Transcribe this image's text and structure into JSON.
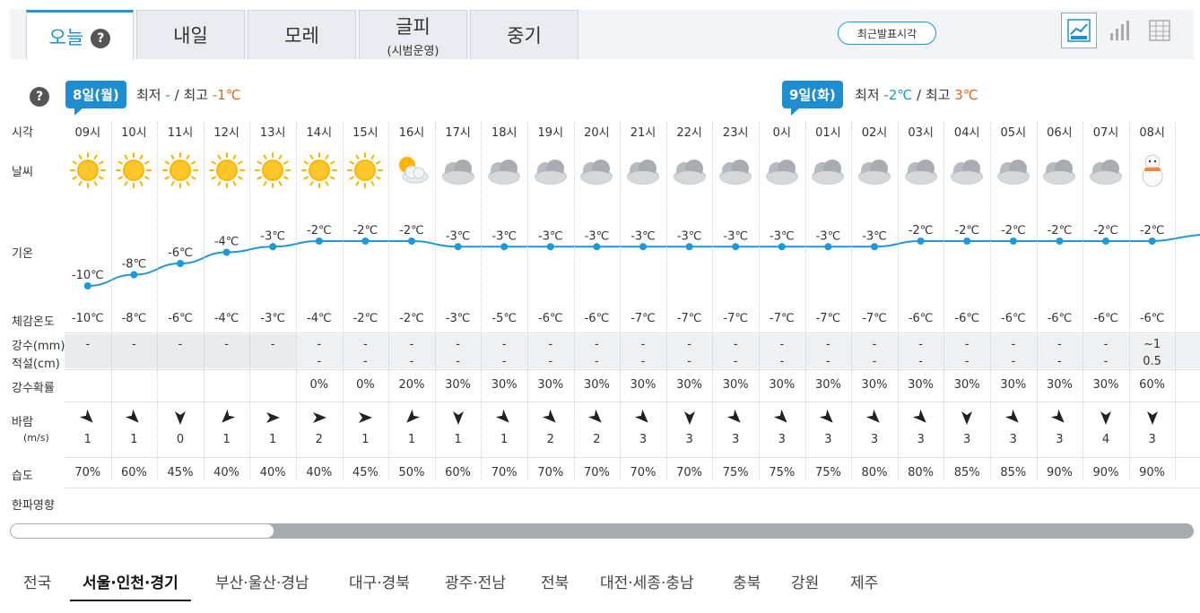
{
  "tabs": [
    {
      "label": "오늘",
      "sub": "",
      "active": true
    },
    {
      "label": "내일",
      "sub": ""
    },
    {
      "label": "모레",
      "sub": ""
    },
    {
      "label": "글피",
      "sub": "(시범운영)"
    },
    {
      "label": "중기",
      "sub": ""
    }
  ],
  "help_label": "?",
  "latest_button": "최근발표시각",
  "view_icons": [
    "line-graph-icon",
    "bar-chart-icon",
    "table-icon"
  ],
  "days": [
    {
      "label": "8일(월)",
      "min_label": "최저",
      "min": "-",
      "sep": "/",
      "max_label": "최고",
      "max": "-1℃"
    },
    {
      "label": "9일(화)",
      "min_label": "최저",
      "min": "-2℃",
      "sep": "/",
      "max_label": "최고",
      "max": "3℃"
    }
  ],
  "row_labels": {
    "time": "시각",
    "weather": "날씨",
    "temp": "기온",
    "feels": "체감온도",
    "precip": "강수(mm)",
    "snow": "적설(cm)",
    "prob": "강수확률",
    "wind": "바람",
    "wind_unit": "(m/s)",
    "humidity": "습도",
    "cold": "한파영향"
  },
  "hours": [
    "09시",
    "10시",
    "11시",
    "12시",
    "13시",
    "14시",
    "15시",
    "16시",
    "17시",
    "18시",
    "19시",
    "20시",
    "21시",
    "22시",
    "23시",
    "0시",
    "01시",
    "02시",
    "03시",
    "04시",
    "05시",
    "06시",
    "07시",
    "08시"
  ],
  "weather": [
    "sunny",
    "sunny",
    "sunny",
    "sunny",
    "sunny",
    "sunny",
    "sunny",
    "partly-cloudy",
    "cloudy",
    "cloudy",
    "cloudy",
    "cloudy",
    "cloudy",
    "cloudy",
    "cloudy",
    "cloudy",
    "cloudy",
    "cloudy",
    "cloudy",
    "cloudy",
    "cloudy",
    "cloudy",
    "cloudy",
    "snow"
  ],
  "temps": [
    -10,
    -8,
    -6,
    -4,
    -3,
    -2,
    -2,
    -2,
    -3,
    -3,
    -3,
    -3,
    -3,
    -3,
    -3,
    -3,
    -3,
    -3,
    -2,
    -2,
    -2,
    -2,
    -2,
    -2
  ],
  "temp_unit": "℃",
  "feels": [
    "-10℃",
    "-8℃",
    "-6℃",
    "-4℃",
    "-3℃",
    "-4℃",
    "-2℃",
    "-2℃",
    "-3℃",
    "-5℃",
    "-6℃",
    "-6℃",
    "-7℃",
    "-7℃",
    "-7℃",
    "-7℃",
    "-7℃",
    "-7℃",
    "-6℃",
    "-6℃",
    "-6℃",
    "-6℃",
    "-6℃",
    "-6℃"
  ],
  "precip": [
    "-",
    "-",
    "-",
    "-",
    "-",
    "-",
    "-",
    "-",
    "-",
    "-",
    "-",
    "-",
    "-",
    "-",
    "-",
    "-",
    "-",
    "-",
    "-",
    "-",
    "-",
    "-",
    "-",
    "~1"
  ],
  "snow": [
    "",
    "",
    "",
    "",
    "",
    "-",
    "-",
    "-",
    "-",
    "-",
    "-",
    "-",
    "-",
    "-",
    "-",
    "-",
    "-",
    "-",
    "-",
    "-",
    "-",
    "-",
    "-",
    "0.5"
  ],
  "prob": [
    "",
    "",
    "",
    "",
    "",
    "0%",
    "0%",
    "20%",
    "30%",
    "30%",
    "30%",
    "30%",
    "30%",
    "30%",
    "30%",
    "30%",
    "30%",
    "30%",
    "30%",
    "30%",
    "30%",
    "30%",
    "30%",
    "60%"
  ],
  "wind_speed": [
    "1",
    "1",
    "0",
    "1",
    "1",
    "2",
    "1",
    "1",
    "1",
    "1",
    "2",
    "2",
    "3",
    "3",
    "3",
    "3",
    "3",
    "3",
    "3",
    "3",
    "3",
    "3",
    "4",
    "3"
  ],
  "wind_dir_deg": [
    135,
    135,
    180,
    225,
    90,
    90,
    90,
    225,
    180,
    135,
    135,
    135,
    135,
    180,
    135,
    135,
    135,
    135,
    135,
    180,
    135,
    135,
    180,
    180
  ],
  "humidity": [
    "70%",
    "60%",
    "45%",
    "40%",
    "40%",
    "40%",
    "45%",
    "50%",
    "60%",
    "70%",
    "70%",
    "70%",
    "70%",
    "70%",
    "75%",
    "75%",
    "75%",
    "80%",
    "80%",
    "85%",
    "85%",
    "90%",
    "90%",
    "90%"
  ],
  "regions": [
    "전국",
    "서울·인천·경기",
    "부산·울산·경남",
    "대구·경북",
    "광주·전남",
    "전북",
    "대전·세종·충남",
    "충북",
    "강원",
    "제주"
  ],
  "active_region": 1,
  "colors": {
    "accent": "#1e98d7",
    "max_temp": "#e0651b",
    "min_temp": "#1e98d7",
    "line": "#1e98d7"
  }
}
